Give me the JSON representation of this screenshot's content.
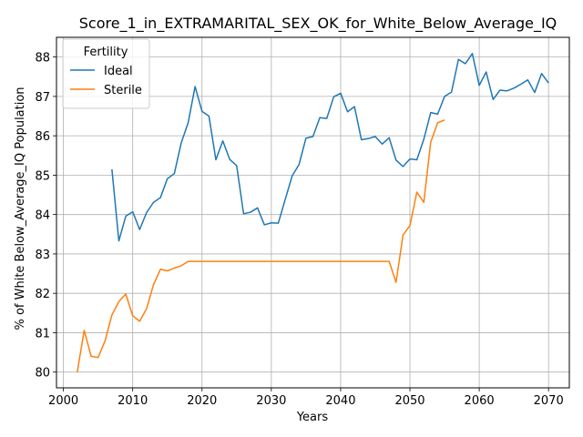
{
  "chart_data": {
    "type": "line",
    "title": "Score_1_in_EXTRAMARITAL_SEX_OK_for_White_Below_Average_IQ",
    "xlabel": "Years",
    "ylabel": "% of White Below_Average_IQ Population",
    "xlim": [
      1999,
      2073
    ],
    "ylim": [
      79.6,
      88.5
    ],
    "xticks": [
      2000,
      2010,
      2020,
      2030,
      2040,
      2050,
      2060,
      2070
    ],
    "yticks": [
      80,
      81,
      82,
      83,
      84,
      85,
      86,
      87,
      88
    ],
    "grid": true,
    "legend": {
      "title": "Fertility",
      "placement": "top-left"
    },
    "series": [
      {
        "name": "Ideal",
        "color": "#1f77b4",
        "x": [
          2007,
          2008,
          2009,
          2010,
          2011,
          2012,
          2013,
          2014,
          2015,
          2016,
          2017,
          2018,
          2019,
          2020,
          2021,
          2022,
          2023,
          2024,
          2025,
          2026,
          2027,
          2028,
          2029,
          2030,
          2031,
          2032,
          2033,
          2034,
          2035,
          2036,
          2037,
          2038,
          2039,
          2040,
          2041,
          2042,
          2043,
          2044,
          2045,
          2046,
          2047,
          2048,
          2049,
          2050,
          2051,
          2052,
          2053,
          2054,
          2055,
          2056,
          2057,
          2058,
          2059,
          2060,
          2061,
          2062,
          2063,
          2064,
          2065,
          2066,
          2067,
          2068,
          2069,
          2070
        ],
        "values": [
          85.15,
          83.33,
          83.96,
          84.07,
          83.62,
          84.05,
          84.31,
          84.43,
          84.91,
          85.04,
          85.82,
          86.33,
          87.25,
          86.62,
          86.5,
          85.39,
          85.87,
          85.4,
          85.24,
          84.02,
          84.06,
          84.17,
          83.74,
          83.79,
          83.78,
          84.38,
          84.98,
          85.27,
          85.94,
          85.98,
          86.46,
          86.44,
          86.99,
          87.08,
          86.61,
          86.74,
          85.9,
          85.93,
          85.98,
          85.79,
          85.95,
          85.38,
          85.22,
          85.41,
          85.39,
          85.91,
          86.59,
          86.55,
          87.0,
          87.11,
          87.94,
          87.83,
          88.09,
          87.28,
          87.62,
          86.92,
          87.16,
          87.14,
          87.21,
          87.31,
          87.42,
          87.1,
          87.58,
          87.34
        ]
      },
      {
        "name": "Sterile",
        "color": "#ff7f0e",
        "x": [
          2002,
          2003,
          2004,
          2005,
          2006,
          2007,
          2008,
          2009,
          2010,
          2011,
          2012,
          2013,
          2014,
          2015,
          2016,
          2017,
          2018,
          2019,
          2020,
          2021,
          2022,
          2023,
          2024,
          2025,
          2026,
          2027,
          2028,
          2029,
          2030,
          2031,
          2032,
          2033,
          2034,
          2035,
          2036,
          2037,
          2038,
          2039,
          2040,
          2041,
          2042,
          2043,
          2044,
          2045,
          2046,
          2047,
          2048,
          2049,
          2050,
          2051,
          2052,
          2053,
          2054,
          2055
        ],
        "values": [
          80.0,
          81.06,
          80.4,
          80.37,
          80.79,
          81.45,
          81.79,
          81.98,
          81.43,
          81.29,
          81.61,
          82.22,
          82.61,
          82.57,
          82.64,
          82.7,
          82.81,
          82.81,
          82.81,
          82.81,
          82.81,
          82.81,
          82.81,
          82.81,
          82.81,
          82.81,
          82.81,
          82.81,
          82.81,
          82.81,
          82.81,
          82.81,
          82.81,
          82.81,
          82.81,
          82.81,
          82.81,
          82.81,
          82.81,
          82.81,
          82.81,
          82.81,
          82.81,
          82.81,
          82.81,
          82.81,
          82.28,
          83.48,
          83.72,
          84.57,
          84.31,
          85.84,
          86.33,
          86.4
        ]
      }
    ]
  }
}
